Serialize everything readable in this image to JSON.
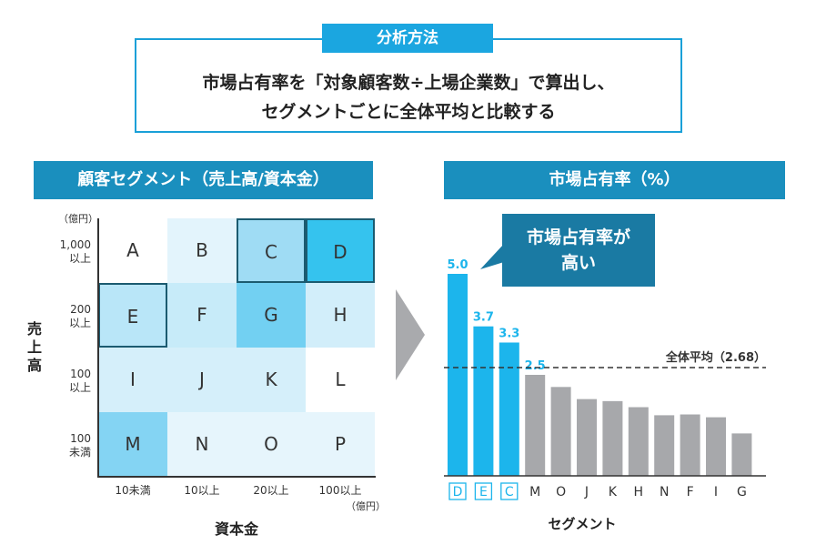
{
  "method": {
    "tag": "分析方法",
    "line1": "市場占有率を「対象顧客数÷上場企業数」で算出し、",
    "line2": "セグメントごとに全体平均と比較する"
  },
  "left_panel": {
    "header": "顧客セグメント（売上高/資本金）",
    "y_title": "売上高",
    "y_unit": "（億円）",
    "y_ticks": [
      {
        "line1": "1,000",
        "line2": "以上"
      },
      {
        "line1": "200",
        "line2": "以上"
      },
      {
        "line1": "100",
        "line2": "以上"
      },
      {
        "line1": "100",
        "line2": "未満"
      }
    ],
    "x_title": "資本金",
    "x_unit": "（億円）",
    "x_ticks": [
      "10未満",
      "10以上",
      "20以上",
      "100以上"
    ],
    "cells": [
      {
        "label": "A",
        "color": "#ffffff",
        "highlight": false
      },
      {
        "label": "B",
        "color": "#e3f4fc",
        "highlight": false
      },
      {
        "label": "C",
        "color": "#9fdcf4",
        "highlight": true
      },
      {
        "label": "D",
        "color": "#35c3ee",
        "highlight": true
      },
      {
        "label": "E",
        "color": "#b9e6f8",
        "highlight": true
      },
      {
        "label": "F",
        "color": "#c7ebf9",
        "highlight": false
      },
      {
        "label": "G",
        "color": "#72d0f2",
        "highlight": false
      },
      {
        "label": "H",
        "color": "#d2eefa",
        "highlight": false
      },
      {
        "label": "I",
        "color": "#d5effa",
        "highlight": false
      },
      {
        "label": "J",
        "color": "#d5effa",
        "highlight": false
      },
      {
        "label": "K",
        "color": "#d5effa",
        "highlight": false
      },
      {
        "label": "L",
        "color": "#ffffff",
        "highlight": false
      },
      {
        "label": "M",
        "color": "#84d4f3",
        "highlight": false
      },
      {
        "label": "N",
        "color": "#e6f5fc",
        "highlight": false
      },
      {
        "label": "O",
        "color": "#e6f5fc",
        "highlight": false
      },
      {
        "label": "P",
        "color": "#e6f5fc",
        "highlight": false
      }
    ]
  },
  "right_panel": {
    "header": "市場占有率（%）",
    "callout_line1": "市場占有率が",
    "callout_line2": "高い",
    "x_axis_title": "セグメント"
  },
  "chart_data": {
    "type": "bar",
    "title": "市場占有率（%）",
    "xlabel": "セグメント",
    "ylabel": "",
    "ylim": [
      0,
      5.0
    ],
    "categories": [
      "D",
      "E",
      "C",
      "M",
      "O",
      "J",
      "K",
      "H",
      "N",
      "F",
      "I",
      "G"
    ],
    "values": [
      5.0,
      3.7,
      3.3,
      2.5,
      2.2,
      1.9,
      1.85,
      1.7,
      1.5,
      1.52,
      1.45,
      1.05
    ],
    "value_labels": [
      "5.0",
      "3.7",
      "3.3",
      "2.5",
      "",
      "",
      "",
      "",
      "",
      "",
      "",
      ""
    ],
    "highlighted_categories": [
      "D",
      "E",
      "C"
    ],
    "highlight_color": "#1cb5ec",
    "other_color": "#a7a8ab",
    "reference_line": {
      "value": 2.68,
      "label": "全体平均（2.68）"
    }
  }
}
